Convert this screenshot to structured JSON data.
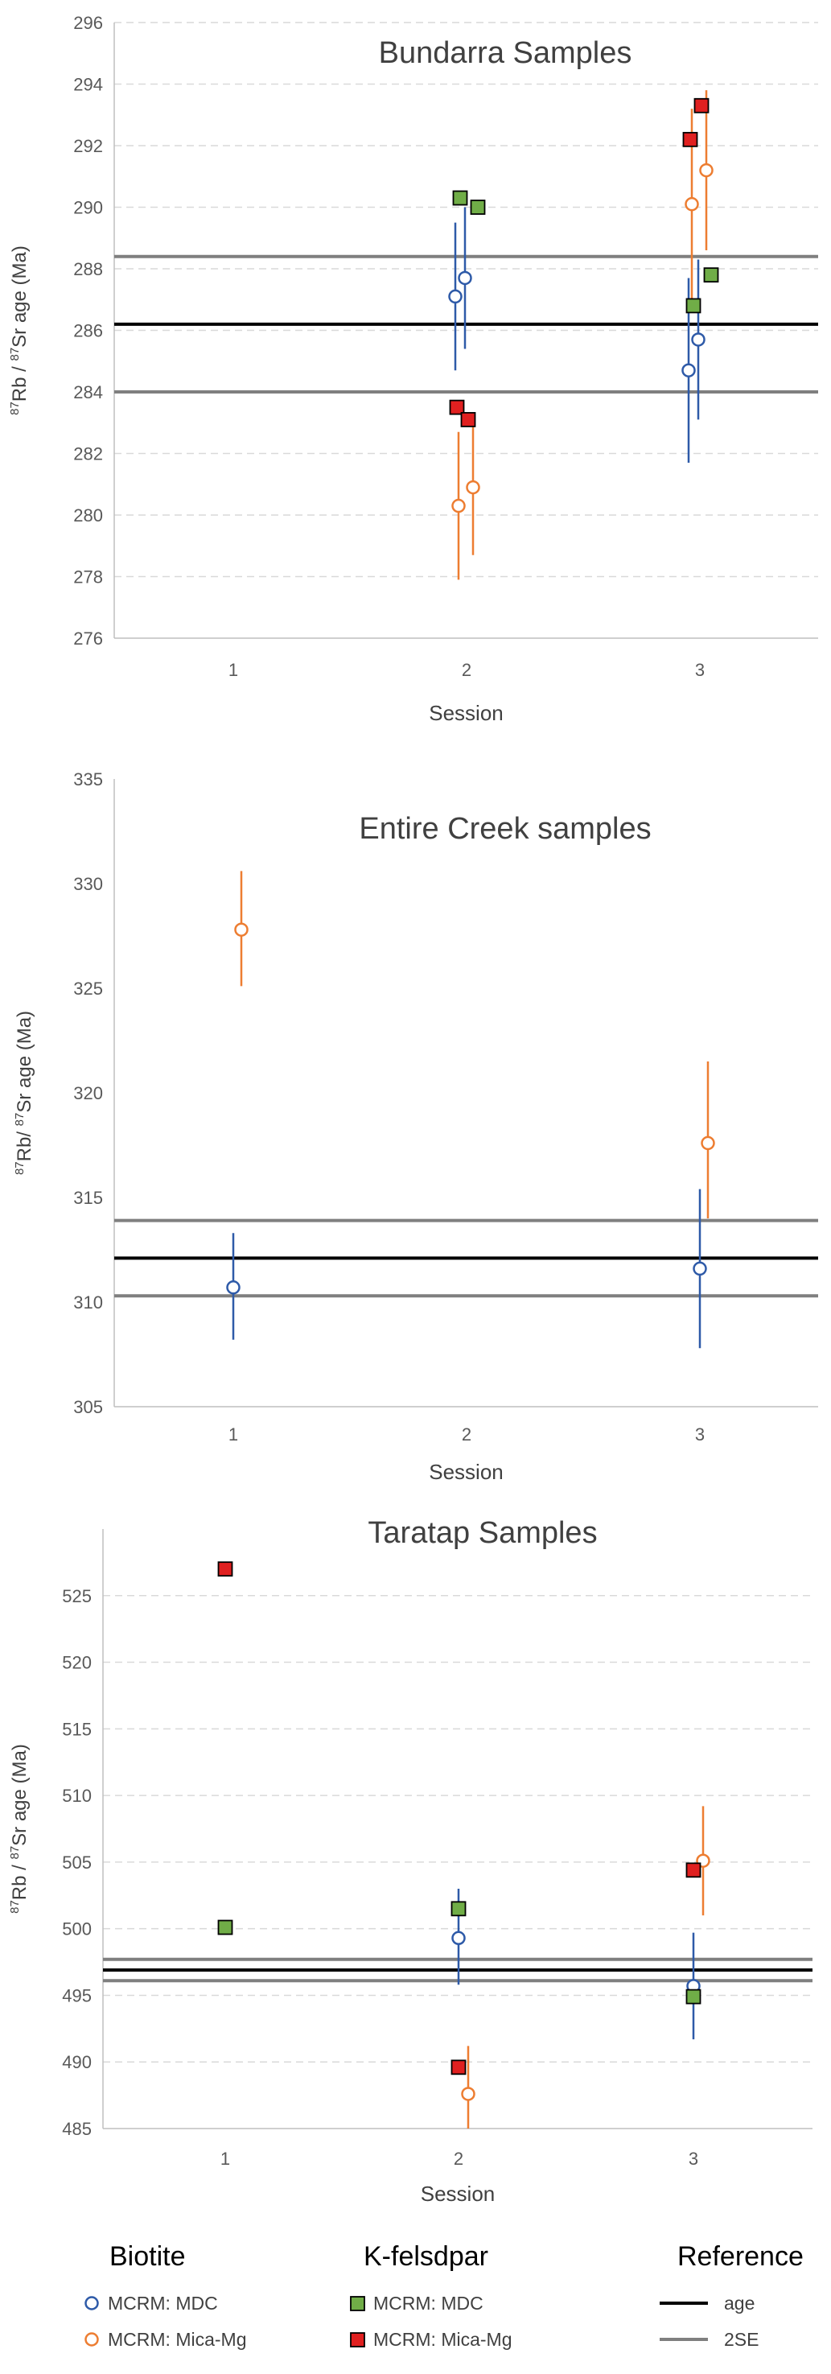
{
  "chart_data": [
    {
      "type": "scatter",
      "title": "Bundarra Samples",
      "xlabel": "Session",
      "ylabel": {
        "sup1": "87",
        "t1": "Rb / ",
        "sup2": "87",
        "t2": "Sr age (Ma)"
      },
      "categories": [
        "1",
        "2",
        "3"
      ],
      "ylim": [
        276,
        296
      ],
      "yticks": [
        276,
        278,
        280,
        282,
        284,
        286,
        288,
        290,
        292,
        294,
        296
      ],
      "grid": true,
      "reference": {
        "age": 286.2,
        "se_upper": 288.4,
        "se_lower": 284.0
      },
      "series": [
        {
          "name": "MCRM: MDC",
          "mineral": "Biotite",
          "points": [
            {
              "x": 2,
              "y": 287.1,
              "lo": 284.7,
              "hi": 289.5
            },
            {
              "x": 2,
              "y": 287.7,
              "lo": 285.4,
              "hi": 290.0
            },
            {
              "x": 3,
              "y": 284.7,
              "lo": 281.7,
              "hi": 287.7
            },
            {
              "x": 3,
              "y": 285.7,
              "lo": 283.1,
              "hi": 288.3
            }
          ]
        },
        {
          "name": "MCRM: Mica-Mg",
          "mineral": "Biotite",
          "points": [
            {
              "x": 2,
              "y": 280.3,
              "lo": 277.9,
              "hi": 282.7
            },
            {
              "x": 2,
              "y": 280.9,
              "lo": 278.7,
              "hi": 283.1
            },
            {
              "x": 3,
              "y": 290.1,
              "lo": 287.0,
              "hi": 293.2
            },
            {
              "x": 3,
              "y": 291.2,
              "lo": 288.6,
              "hi": 293.8
            }
          ]
        },
        {
          "name": "MCRM: MDC",
          "mineral": "K-felsdpar",
          "points": [
            {
              "x": 2,
              "y": 290.3
            },
            {
              "x": 2,
              "y": 290.0
            },
            {
              "x": 3,
              "y": 286.8
            },
            {
              "x": 3,
              "y": 287.8
            }
          ]
        },
        {
          "name": "MCRM: Mica-Mg",
          "mineral": "K-felsdpar",
          "points": [
            {
              "x": 2,
              "y": 283.5
            },
            {
              "x": 2,
              "y": 283.1
            },
            {
              "x": 3,
              "y": 292.2
            },
            {
              "x": 3,
              "y": 293.3
            }
          ]
        }
      ]
    },
    {
      "type": "scatter",
      "title": "Entire Creek samples",
      "xlabel": "Session",
      "ylabel": {
        "sup1": "87",
        "t1": "Rb/ ",
        "sup2": "87",
        "t2": "Sr  age  (Ma)"
      },
      "categories": [
        "1",
        "2",
        "3"
      ],
      "ylim": [
        305,
        335
      ],
      "yticks": [
        305,
        310,
        315,
        320,
        325,
        330,
        335
      ],
      "grid": false,
      "reference": {
        "age": 312.1,
        "se_upper": 313.9,
        "se_lower": 310.3
      },
      "series": [
        {
          "name": "MCRM: MDC",
          "mineral": "Biotite",
          "points": [
            {
              "x": 1,
              "y": 310.7,
              "lo": 308.2,
              "hi": 313.3
            },
            {
              "x": 3,
              "y": 311.6,
              "lo": 307.8,
              "hi": 315.4
            }
          ]
        },
        {
          "name": "MCRM: Mica-Mg",
          "mineral": "Biotite",
          "points": [
            {
              "x": 1,
              "y": 327.8,
              "lo": 325.1,
              "hi": 330.6
            },
            {
              "x": 3,
              "y": 317.6,
              "lo": 314.0,
              "hi": 321.5
            }
          ]
        },
        {
          "name": "MCRM: MDC",
          "mineral": "K-felsdpar",
          "points": []
        },
        {
          "name": "MCRM: Mica-Mg",
          "mineral": "K-felsdpar",
          "points": []
        }
      ]
    },
    {
      "type": "scatter",
      "title": "Taratap Samples",
      "xlabel": "Session",
      "ylabel": {
        "sup1": "87",
        "t1": "Rb / ",
        "sup2": "87",
        "t2": "Sr  age  (Ma)"
      },
      "categories": [
        "1",
        "2",
        "3"
      ],
      "ylim": [
        485,
        530
      ],
      "yticks": [
        485,
        490,
        495,
        500,
        505,
        510,
        515,
        520,
        525
      ],
      "grid": true,
      "reference": {
        "age": 496.9,
        "se_upper": 497.7,
        "se_lower": 496.1
      },
      "series": [
        {
          "name": "MCRM: MDC",
          "mineral": "Biotite",
          "points": [
            {
              "x": 2,
              "y": 499.3,
              "lo": 495.8,
              "hi": 503.0
            },
            {
              "x": 3,
              "y": 495.7,
              "lo": 491.7,
              "hi": 499.7
            }
          ]
        },
        {
          "name": "MCRM: Mica-Mg",
          "mineral": "Biotite",
          "points": [
            {
              "x": 2,
              "y": 487.6,
              "lo": 485.0,
              "hi": 491.2
            },
            {
              "x": 3,
              "y": 505.1,
              "lo": 501.0,
              "hi": 509.2
            }
          ]
        },
        {
          "name": "MCRM: MDC",
          "mineral": "K-felsdpar",
          "points": [
            {
              "x": 1,
              "y": 500.1
            },
            {
              "x": 2,
              "y": 501.5
            },
            {
              "x": 3,
              "y": 494.9
            }
          ]
        },
        {
          "name": "MCRM: Mica-Mg",
          "mineral": "K-felsdpar",
          "points": [
            {
              "x": 1,
              "y": 527.0
            },
            {
              "x": 2,
              "y": 489.6
            },
            {
              "x": 3,
              "y": 504.4
            }
          ]
        }
      ]
    }
  ],
  "legend": {
    "groups": [
      {
        "title": "Biotite",
        "items": [
          {
            "label": "MCRM: MDC",
            "marker": "circle",
            "color": "#2e5aa8"
          },
          {
            "label": "MCRM: Mica-Mg",
            "marker": "circle",
            "color": "#ed7d31"
          }
        ]
      },
      {
        "title": "K-felsdpar",
        "items": [
          {
            "label": "MCRM: MDC",
            "marker": "square",
            "color": "#70ad47"
          },
          {
            "label": "MCRM: Mica-Mg",
            "marker": "square",
            "color": "#e02020"
          }
        ]
      },
      {
        "title": "Reference",
        "items": [
          {
            "label": "age",
            "marker": "line",
            "color": "#000000"
          },
          {
            "label": "2SE",
            "marker": "line",
            "color": "#7f7f7f"
          }
        ]
      }
    ]
  },
  "colors": {
    "biotite_mdc": "#2e5aa8",
    "biotite_micamg": "#ed7d31",
    "kfs_mdc": "#70ad47",
    "kfs_micamg": "#e02020",
    "age_line": "#000000",
    "se_line": "#7f7f7f"
  }
}
